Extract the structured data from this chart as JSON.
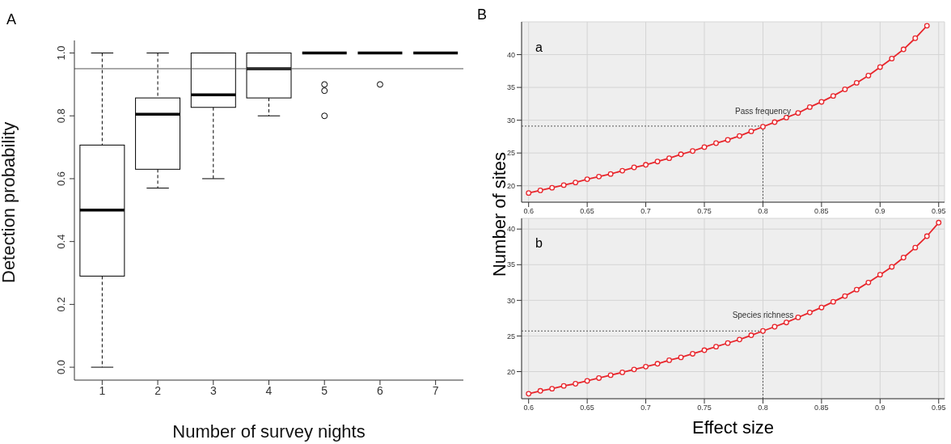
{
  "chart_data": [
    {
      "type": "box",
      "xlabel": "Number of survey nights",
      "ylabel": "Detection probability",
      "annotations": [
        "A"
      ],
      "categories": [
        "1",
        "2",
        "3",
        "4",
        "5",
        "6",
        "7"
      ],
      "boxes": [
        {
          "low": 0,
          "q1": 0.29,
          "median": 0.5,
          "q3": 0.707,
          "high": 1.0
        },
        {
          "low": 0.57,
          "q1": 0.63,
          "median": 0.805,
          "q3": 0.857,
          "high": 1.0
        },
        {
          "low": 0.6,
          "q1": 0.827,
          "median": 0.867,
          "q3": 1.0,
          "high": 1.0
        },
        {
          "low": 0.8,
          "q1": 0.857,
          "median": 0.95,
          "q3": 1.0,
          "high": 1.0
        },
        {
          "low": 1.0,
          "q1": 1.0,
          "median": 1.0,
          "q3": 1.0,
          "high": 1.0,
          "outliers": [
            0.9,
            0.88,
            0.8
          ]
        },
        {
          "low": 1.0,
          "q1": 1.0,
          "median": 1.0,
          "q3": 1.0,
          "high": 1.0,
          "outliers": [
            0.9
          ]
        },
        {
          "low": 1.0,
          "q1": 1.0,
          "median": 1.0,
          "q3": 1.0,
          "high": 1.0
        }
      ],
      "ylim": [
        -0.041,
        1.04
      ],
      "yticks": [
        {
          "value": 0,
          "label": "0.0"
        },
        0.2,
        0.4,
        0.6,
        0.8,
        {
          "value": 1,
          "label": "1.0"
        }
      ],
      "ref_lines": [
        {
          "axis": "y",
          "value": 0.95,
          "color": "#555555",
          "line_style": "solid"
        }
      ]
    },
    {
      "type": "line",
      "ylabel": "Number of sites",
      "annotations": [
        "B",
        "a",
        {
          "text": "Pass frequency",
          "x": 0.8,
          "y": 29.0
        }
      ],
      "x": [
        0.6,
        0.61,
        0.62,
        0.63,
        0.64,
        0.65,
        0.66,
        0.67,
        0.68,
        0.69,
        0.7,
        0.71,
        0.72,
        0.73,
        0.74,
        0.75,
        0.76,
        0.77,
        0.78,
        0.79,
        0.8,
        0.81,
        0.82,
        0.83,
        0.84,
        0.85,
        0.86,
        0.87,
        0.88,
        0.89,
        0.9,
        0.91,
        0.92,
        0.93,
        0.94
      ],
      "series": [
        {
          "color": "#e8262c",
          "values": [
            18.9,
            19.3,
            19.7,
            20.1,
            20.5,
            21.0,
            21.4,
            21.8,
            22.3,
            22.8,
            23.2,
            23.7,
            24.2,
            24.8,
            25.3,
            25.9,
            26.5,
            27.0,
            27.6,
            28.3,
            29.0,
            29.7,
            30.4,
            31.1,
            32.0,
            32.8,
            33.7,
            34.7,
            35.7,
            36.8,
            38.1,
            39.4,
            40.8,
            42.5,
            44.4
          ]
        }
      ],
      "xlim": [
        0.594,
        0.955
      ],
      "xticks": [
        0.6,
        0.65,
        0.7,
        0.75,
        0.8,
        0.85,
        0.9,
        0.95
      ],
      "ylim": [
        17.5,
        45
      ],
      "yticks": [
        20,
        25,
        30,
        35,
        40
      ],
      "grid": true,
      "marker": "circle",
      "ref_lines": [
        {
          "axis": "x",
          "value": 0.8,
          "color": "#555555",
          "line_style": "dotted"
        },
        {
          "axis": "y",
          "value": 29.1,
          "color": "#555555",
          "line_style": "dotted"
        }
      ]
    },
    {
      "type": "line",
      "xlabel": "Effect size",
      "annotations": [
        "b",
        {
          "text": "Species richness",
          "x": 0.8,
          "y": 25.7
        }
      ],
      "x": [
        0.6,
        0.61,
        0.62,
        0.63,
        0.64,
        0.65,
        0.66,
        0.67,
        0.68,
        0.69,
        0.7,
        0.71,
        0.72,
        0.73,
        0.74,
        0.75,
        0.76,
        0.77,
        0.78,
        0.79,
        0.8,
        0.81,
        0.82,
        0.83,
        0.84,
        0.85,
        0.86,
        0.87,
        0.88,
        0.89,
        0.9,
        0.91,
        0.92,
        0.93,
        0.94,
        0.95
      ],
      "series": [
        {
          "color": "#e8262c",
          "values": [
            16.9,
            17.3,
            17.6,
            18.0,
            18.3,
            18.7,
            19.1,
            19.5,
            19.9,
            20.3,
            20.7,
            21.1,
            21.6,
            22.0,
            22.5,
            23.0,
            23.5,
            24.0,
            24.5,
            25.1,
            25.7,
            26.3,
            26.9,
            27.6,
            28.3,
            29.0,
            29.8,
            30.6,
            31.5,
            32.5,
            33.6,
            34.7,
            36.0,
            37.4,
            39.0,
            40.9
          ]
        }
      ],
      "xlim": [
        0.594,
        0.955
      ],
      "xticks": [
        0.6,
        0.65,
        0.7,
        0.75,
        0.8,
        0.85,
        0.9,
        0.95
      ],
      "ylim": [
        16.2,
        41.5
      ],
      "yticks": [
        20,
        25,
        30,
        35,
        40
      ],
      "grid": true,
      "marker": "circle",
      "ref_lines": [
        {
          "axis": "x",
          "value": 0.8,
          "color": "#555555",
          "line_style": "dotted"
        },
        {
          "axis": "y",
          "value": 25.7,
          "color": "#555555",
          "line_style": "dotted"
        }
      ]
    }
  ]
}
